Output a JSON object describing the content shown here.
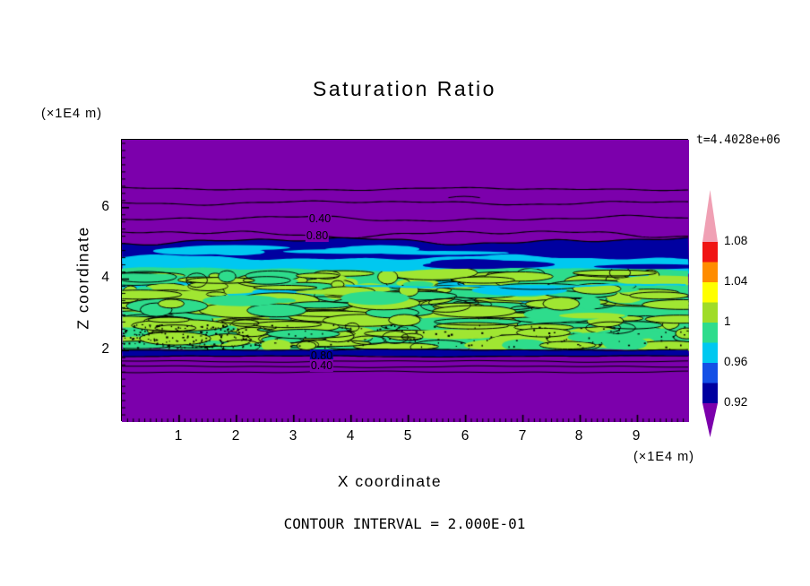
{
  "header": {
    "title": "Saturation Ratio",
    "time_label": "t=4.4028e+06"
  },
  "axes": {
    "x_label": "X coordinate",
    "y_label": "Z coordinate",
    "x_unit": "(×1E4 m)",
    "y_unit": "(×1E4 m)"
  },
  "footer": {
    "contour_note": "CONTOUR INTERVAL = 2.000E-01"
  },
  "chart_data": {
    "type": "heatmap",
    "title": "Saturation Ratio",
    "xlabel": "X coordinate",
    "ylabel": "Z coordinate",
    "x_unit_multiplier": "(×1E4 m)",
    "y_unit_multiplier": "(×1E4 m)",
    "time_annotation": "t=4.4028e+06",
    "contour_interval": 0.2,
    "contour_interval_text": "CONTOUR INTERVAL = 2.000E-01",
    "xlim": [
      0,
      9.9
    ],
    "ylim": [
      0,
      7.9
    ],
    "x_ticks": [
      "1",
      "2",
      "3",
      "4",
      "5",
      "6",
      "7",
      "8",
      "9"
    ],
    "y_ticks": [
      "2",
      "4",
      "6"
    ],
    "legend_position": "right",
    "grid": false,
    "colorbar": {
      "tick_labels": [
        "1.08",
        "1.04",
        "1",
        "0.96",
        "0.92"
      ],
      "levels": [
        0.92,
        0.96,
        1.0,
        1.04,
        1.08
      ],
      "colors_top_to_bottom": [
        "#F0A0B4",
        "#F01414",
        "#FF8C00",
        "#FFFF00",
        "#A0DC28",
        "#2EDC8C",
        "#00C8F0",
        "#1450E6",
        "#0000A0",
        "#7C00AC"
      ]
    },
    "contour_line_labels": [
      {
        "text": "0.40",
        "x": 3.45,
        "z": 5.69
      },
      {
        "text": "0.80",
        "x": 3.4,
        "z": 5.22
      },
      {
        "text": "0.80",
        "x": 3.47,
        "z": 1.86
      },
      {
        "text": "0.40",
        "x": 3.47,
        "z": 1.58
      }
    ],
    "field": {
      "description": "Saturation ratio field: undersaturated purple background above z~5.1 and below z~1.9; dark-blue band z~4.6-5.1; cyan band z~4.3-4.6; mottled green/yellow-green saturated zone z~2.0-4.3; thin dark-blue stripe near z~2.0; black contour lines at 0.2 intervals in the purple zones.",
      "bg": "#7C00AC",
      "navy": "#0000A0",
      "blue": "#1450E6",
      "cyan": "#00C8F0",
      "green": "#2EDC8C",
      "ygreen": "#A0E632",
      "line_color": "#000000",
      "seed": 1337,
      "blob_count": 330,
      "speckle_count": 300,
      "navy_band": {
        "z_top": 5.07,
        "z_bot": 4.6
      },
      "cyan_band": {
        "z_top": 4.6,
        "z_bot": 4.28
      },
      "green_band": {
        "z_top": 4.28,
        "z_bot": 2.02
      },
      "dark_stripe": {
        "z_top": 2.02,
        "z_bot": 1.84
      },
      "top_lines_z": [
        6.52,
        6.14,
        5.69,
        5.27
      ],
      "short_line": {
        "x1": 5.7,
        "x2": 6.25,
        "z": 6.28
      },
      "bottom_lines_z": [
        1.7,
        1.55,
        1.4
      ]
    }
  }
}
